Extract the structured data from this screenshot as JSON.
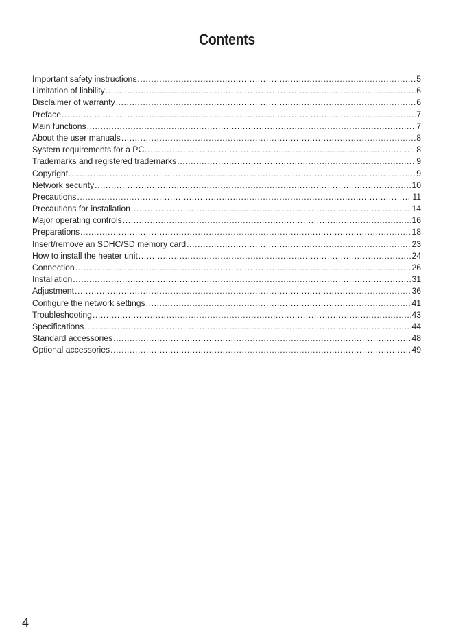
{
  "title": "Contents",
  "entries": [
    {
      "label": "Important safety instructions",
      "page": "5"
    },
    {
      "label": "Limitation of liability",
      "page": "6"
    },
    {
      "label": "Disclaimer of warranty",
      "page": "6"
    },
    {
      "label": "Preface",
      "page": "7"
    },
    {
      "label": "Main functions",
      "page": "7"
    },
    {
      "label": "About the user manuals",
      "page": "8"
    },
    {
      "label": "System requirements for a PC",
      "page": "8"
    },
    {
      "label": "Trademarks and registered trademarks",
      "page": "9"
    },
    {
      "label": "Copyright",
      "page": "9"
    },
    {
      "label": "Network security",
      "page": "10"
    },
    {
      "label": "Precautions",
      "page": "11"
    },
    {
      "label": "Precautions for installation",
      "page": "14"
    },
    {
      "label": "Major operating controls",
      "page": "16"
    },
    {
      "label": "Preparations",
      "page": "18"
    },
    {
      "label": "Insert/remove an SDHC/SD memory card",
      "page": "23"
    },
    {
      "label": "How to install the heater unit",
      "page": "24"
    },
    {
      "label": "Connection",
      "page": "26"
    },
    {
      "label": "Installation",
      "page": "31"
    },
    {
      "label": "Adjustment",
      "page": "36"
    },
    {
      "label": "Configure the network settings",
      "page": "41"
    },
    {
      "label": "Troubleshooting",
      "page": "43"
    },
    {
      "label": "Specifications",
      "page": "44"
    },
    {
      "label": "Standard accessories",
      "page": "48"
    },
    {
      "label": "Optional accessories",
      "page": "49"
    }
  ],
  "page_number": "4"
}
